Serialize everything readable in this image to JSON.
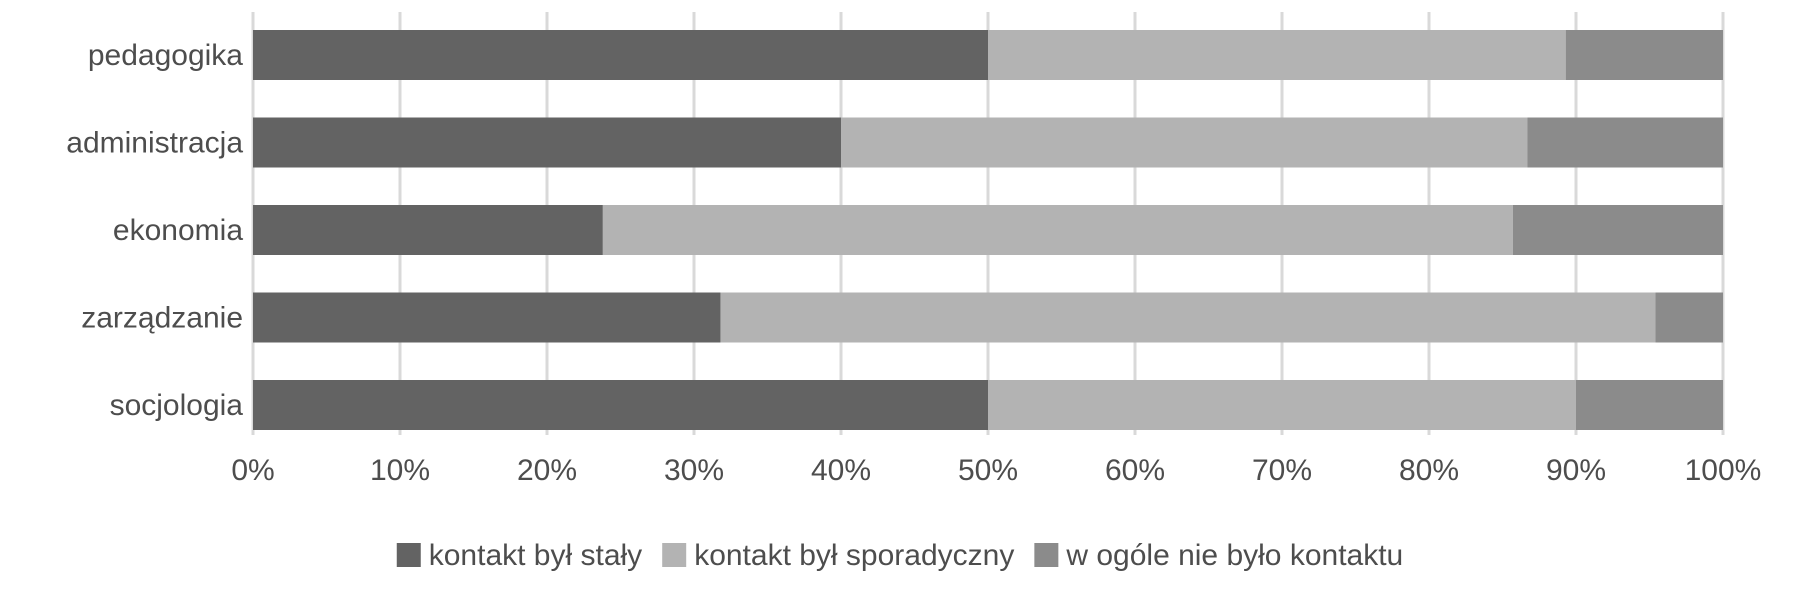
{
  "chart_data": {
    "type": "bar",
    "orientation": "horizontal",
    "stacked": "percent",
    "categories": [
      "pedagogika",
      "administracja",
      "ekonomia",
      "zarządzanie",
      "socjologia"
    ],
    "series": [
      {
        "name": "kontakt był stały",
        "values": [
          50.0,
          40.0,
          23.8,
          31.8,
          50.0
        ]
      },
      {
        "name": "kontakt był sporadyczny",
        "values": [
          39.3,
          46.7,
          61.9,
          63.6,
          40.0
        ]
      },
      {
        "name": "w ogóle nie było kontaktu",
        "values": [
          10.7,
          13.3,
          14.3,
          4.6,
          10.0
        ]
      }
    ],
    "xlim": [
      0,
      100
    ],
    "x_ticks": [
      "0%",
      "10%",
      "20%",
      "30%",
      "40%",
      "50%",
      "60%",
      "70%",
      "80%",
      "90%",
      "100%"
    ],
    "grid": true,
    "legend": "bottom",
    "colors": [
      "#636363",
      "#b3b3b3",
      "#8b8b8b"
    ],
    "title": "",
    "xlabel": "",
    "ylabel": ""
  }
}
